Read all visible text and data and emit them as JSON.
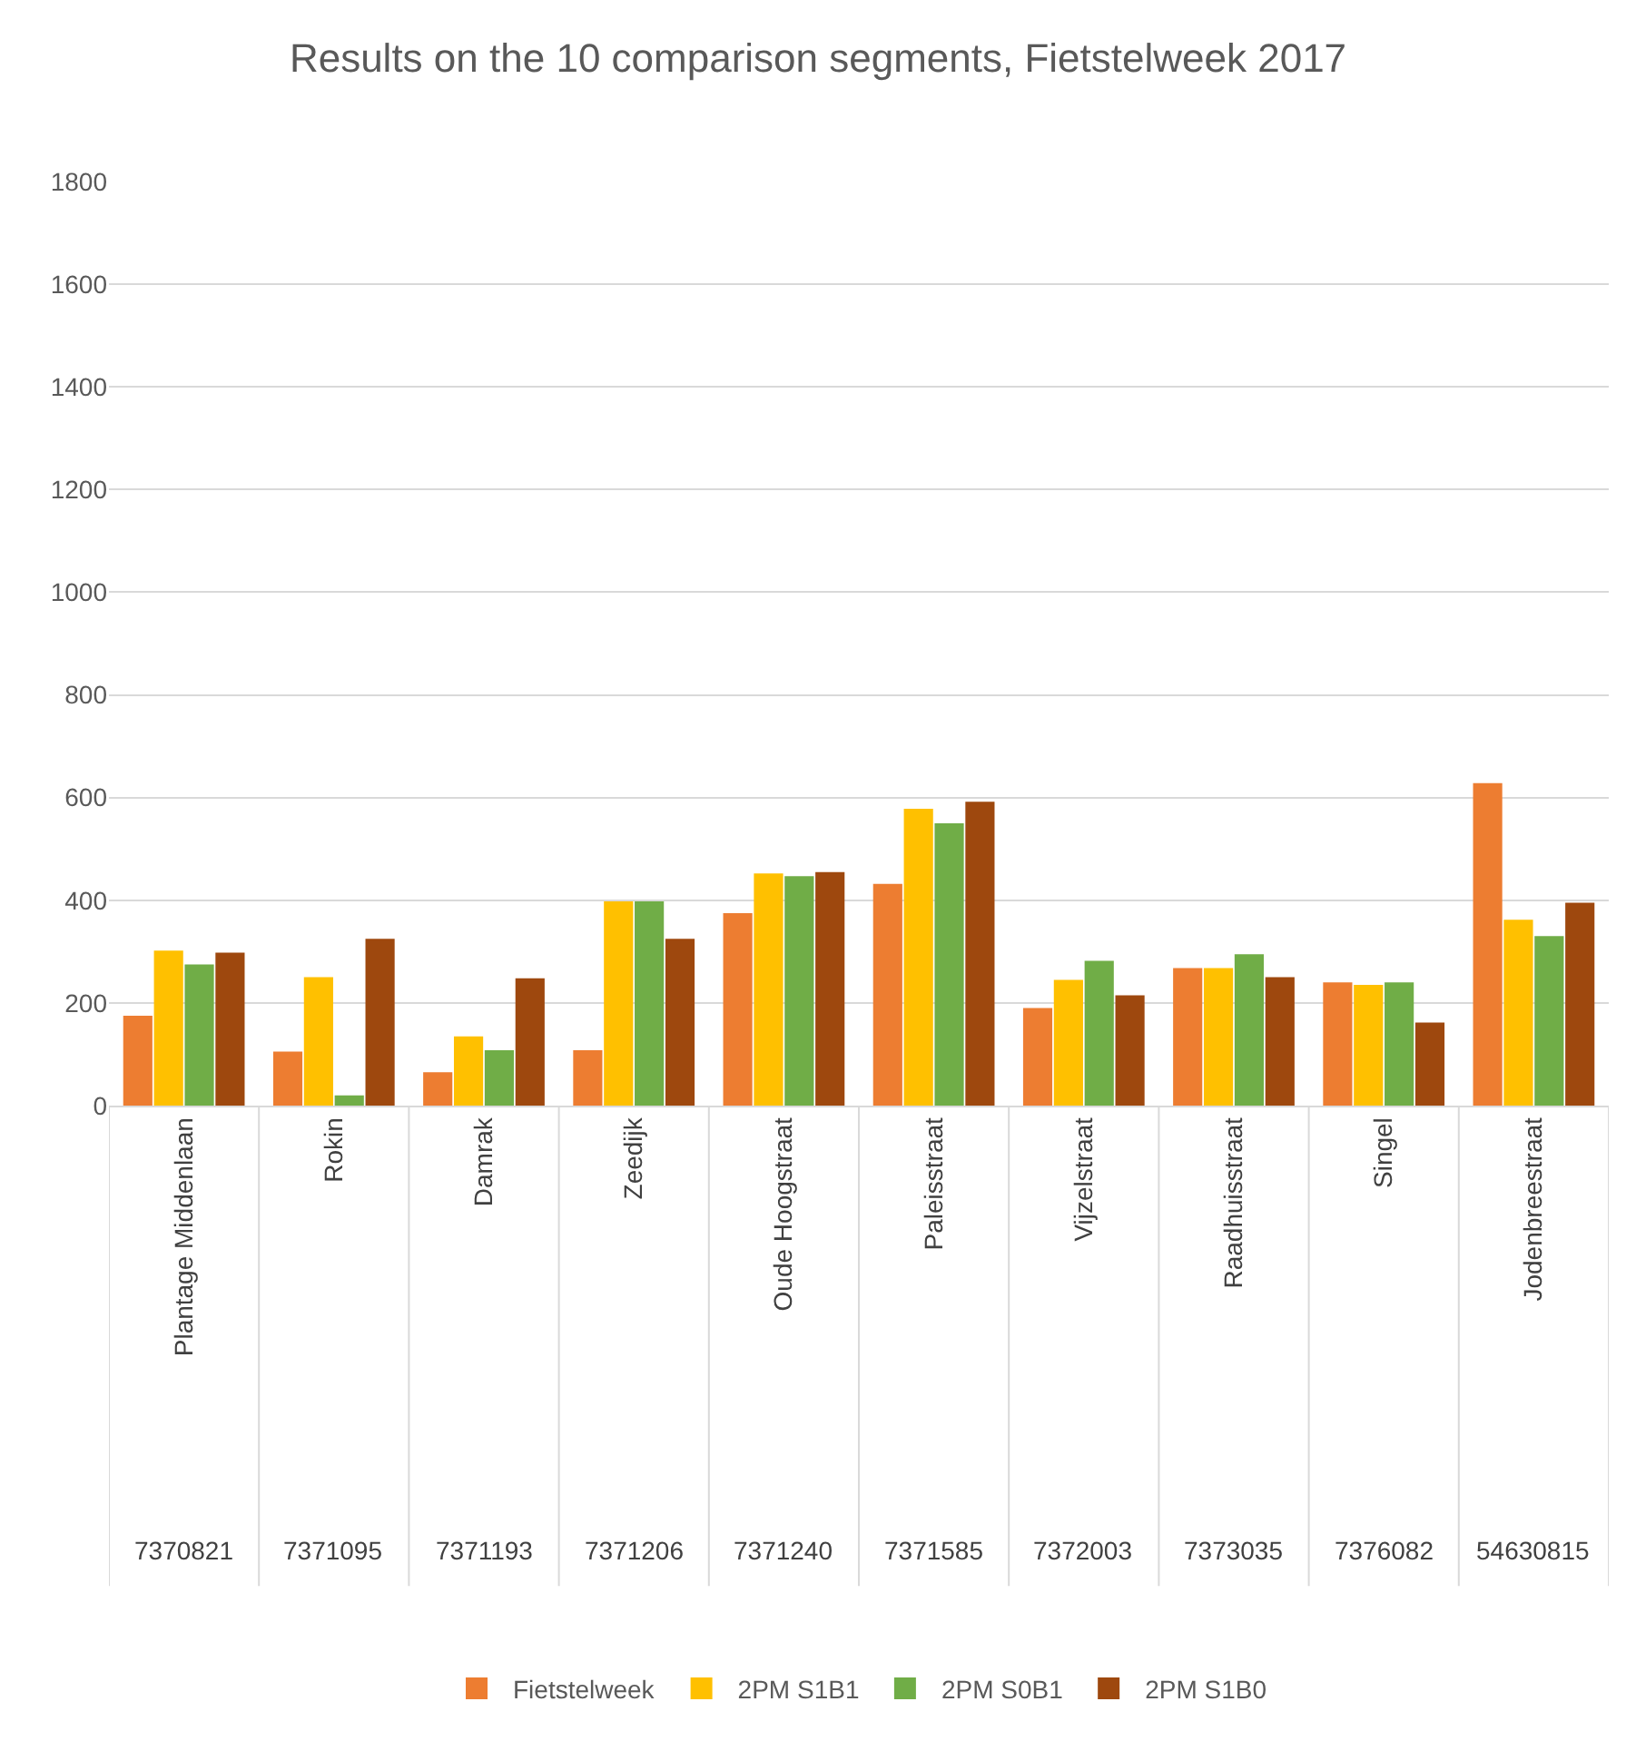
{
  "chart_data": {
    "type": "bar",
    "title": "Results on the 10 comparison segments, Fietstelweek 2017",
    "categories": [
      "Plantage Middenlaan",
      "Rokin",
      "Damrak",
      "Zeedijk",
      "Oude Hoogstraat",
      "Paleisstraat",
      "Vijzelstraat",
      "Raadhuisstraat",
      "Singel",
      "Jodenbreestraat"
    ],
    "series": [
      {
        "name": "Fietstelweek",
        "color": "#ed7d31",
        "values": [
          175,
          105,
          65,
          108,
          375,
          432,
          190,
          268,
          240,
          628
        ]
      },
      {
        "name": "2PM S1B1",
        "color": "#ffc000",
        "values": [
          302,
          250,
          135,
          398,
          452,
          578,
          245,
          268,
          235,
          362
        ]
      },
      {
        "name": "2PM S0B1",
        "color": "#70ad47",
        "values": [
          275,
          20,
          108,
          398,
          447,
          550,
          282,
          295,
          240,
          330
        ]
      },
      {
        "name": "2PM S1B0",
        "color": "#9e480e",
        "values": [
          298,
          325,
          248,
          325,
          455,
          592,
          215,
          250,
          162,
          395
        ]
      }
    ],
    "annotations": [
      "7370821",
      "7371095",
      "7371193",
      "7371206",
      "7371240",
      "7371585",
      "7372003",
      "7373035",
      "7376082",
      "54630815"
    ],
    "ylim": [
      0,
      1800
    ],
    "yticks": [
      0,
      200,
      400,
      600,
      800,
      1000,
      1200,
      1400,
      1600,
      1800
    ],
    "grid": "y",
    "legend": "bottom"
  }
}
